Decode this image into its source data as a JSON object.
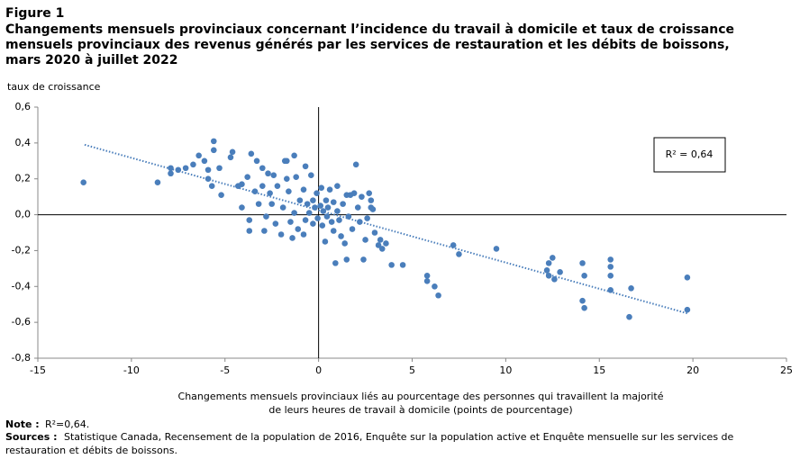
{
  "chart_data": {
    "type": "scatter",
    "figure_label": "Figure 1",
    "title": [
      "Changements mensuels provinciaux concernant l’incidence du travail à domicile et taux de croissance",
      "mensuels provinciaux des revenus générés par les services de restauration et les débits de boissons,",
      "mars 2020 à juillet 2022"
    ],
    "y_axis_label": "taux de croissance",
    "x_axis_label": [
      "Changements mensuels provinciaux liés au pourcentage des personnes qui travaillent la majorité",
      "de leurs heures de travail à domicile (points de pourcentage)"
    ],
    "annotation": "R² = 0,64",
    "note": {
      "label": "Note :",
      "text": "R²=0,64."
    },
    "sources": {
      "label": "Sources :",
      "text": [
        "Statistique Canada, Recensement de la population de 2016, Enquête sur la population active et Enquête mensuelle sur les services de",
        "restauration et débits de boissons."
      ]
    },
    "xlim": [
      -15,
      25
    ],
    "xticks": [
      -15,
      -10,
      -5,
      0,
      5,
      10,
      15,
      20,
      25
    ],
    "ylim": [
      -0.8,
      0.6
    ],
    "yticks": [
      {
        "value": -0.8,
        "label": "-0,8"
      },
      {
        "value": -0.6,
        "label": "-0,6"
      },
      {
        "value": -0.4,
        "label": "-0,4"
      },
      {
        "value": -0.2,
        "label": "-0,2"
      },
      {
        "value": 0,
        "label": "0,0"
      },
      {
        "value": 0.2,
        "label": "0,2"
      },
      {
        "value": 0.4,
        "label": "0,4"
      },
      {
        "value": 0.6,
        "label": "0,6"
      }
    ],
    "series": [
      {
        "color": "#4a7ebb",
        "x": [
          -12.56,
          -8.6,
          -7.9,
          -7.9,
          -7.5,
          -7.1,
          -6.7,
          -6.4,
          -6.1,
          -5.6,
          -5.6,
          -5.9,
          -5.9,
          -5.7,
          -5.3,
          -5.2,
          -4.7,
          -4.6,
          -4.3,
          -4.1,
          -4.1,
          -3.8,
          -3.7,
          -3.7,
          -3.6,
          -3.4,
          -3.2,
          -3.3,
          -3.0,
          -3.0,
          -2.8,
          -2.7,
          -2.9,
          -2.6,
          -2.5,
          -2.4,
          -2.3,
          -2.2,
          -2.0,
          -1.9,
          -1.8,
          -1.7,
          -1.6,
          -1.7,
          -1.5,
          -1.4,
          -1.3,
          -1.3,
          -1.2,
          -1.1,
          -1.0,
          -0.8,
          -0.8,
          -0.7,
          -0.7,
          -0.6,
          -0.4,
          -0.5,
          -0.3,
          -0.3,
          -0.2,
          -0.1,
          -0.05,
          0.1,
          0.15,
          0.2,
          0.25,
          0.35,
          0.4,
          0.45,
          0.5,
          0.6,
          0.7,
          0.8,
          0.8,
          0.9,
          1.0,
          1.0,
          1.1,
          1.2,
          1.3,
          1.4,
          1.5,
          1.5,
          1.6,
          1.7,
          1.8,
          1.9,
          2.0,
          2.1,
          2.2,
          2.3,
          2.4,
          2.5,
          2.6,
          2.7,
          2.8,
          2.8,
          2.9,
          3.0,
          3.2,
          3.3,
          3.4,
          3.6,
          3.9,
          4.5,
          5.8,
          5.8,
          6.2,
          6.4,
          7.2,
          7.5,
          9.5,
          12.3,
          12.2,
          12.3,
          12.5,
          12.6,
          12.9,
          14.1,
          14.2,
          14.1,
          14.2,
          15.6,
          15.6,
          15.6,
          15.6,
          16.7,
          16.6,
          19.7,
          19.7
        ],
        "values": [
          0.18,
          0.18,
          0.26,
          0.23,
          0.25,
          0.26,
          0.28,
          0.33,
          0.3,
          0.41,
          0.36,
          0.25,
          0.2,
          0.16,
          0.26,
          0.11,
          0.32,
          0.35,
          0.16,
          0.17,
          0.04,
          0.21,
          -0.03,
          -0.09,
          0.34,
          0.13,
          0.06,
          0.3,
          0.26,
          0.16,
          -0.01,
          0.23,
          -0.09,
          0.12,
          0.06,
          0.22,
          -0.05,
          0.16,
          -0.11,
          0.04,
          0.3,
          0.3,
          0.13,
          0.2,
          -0.04,
          -0.13,
          0.33,
          0.01,
          0.21,
          -0.08,
          0.08,
          0.14,
          -0.11,
          0.27,
          -0.03,
          0.06,
          0.22,
          0.01,
          0.08,
          -0.05,
          0.04,
          0.12,
          -0.02,
          0.05,
          0.15,
          -0.06,
          0.02,
          -0.15,
          0.08,
          -0.01,
          0.04,
          0.14,
          -0.04,
          0.07,
          -0.09,
          -0.27,
          0.02,
          0.16,
          -0.03,
          -0.12,
          0.06,
          -0.16,
          -0.25,
          0.11,
          -0.01,
          0.11,
          -0.08,
          0.12,
          0.28,
          0.04,
          -0.04,
          0.1,
          -0.25,
          -0.14,
          -0.02,
          0.12,
          0.08,
          0.04,
          0.03,
          -0.1,
          -0.17,
          -0.14,
          -0.19,
          -0.16,
          -0.28,
          -0.28,
          -0.34,
          -0.37,
          -0.4,
          -0.45,
          -0.17,
          -0.22,
          -0.19,
          -0.27,
          -0.31,
          -0.34,
          -0.24,
          -0.36,
          -0.32,
          -0.27,
          -0.34,
          -0.48,
          -0.52,
          -0.25,
          -0.29,
          -0.34,
          -0.42,
          -0.41,
          -0.57,
          -0.35,
          -0.53
        ]
      }
    ],
    "trendline": {
      "x": [
        -12.5,
        19.7
      ],
      "y": [
        0.39,
        -0.55
      ]
    }
  }
}
